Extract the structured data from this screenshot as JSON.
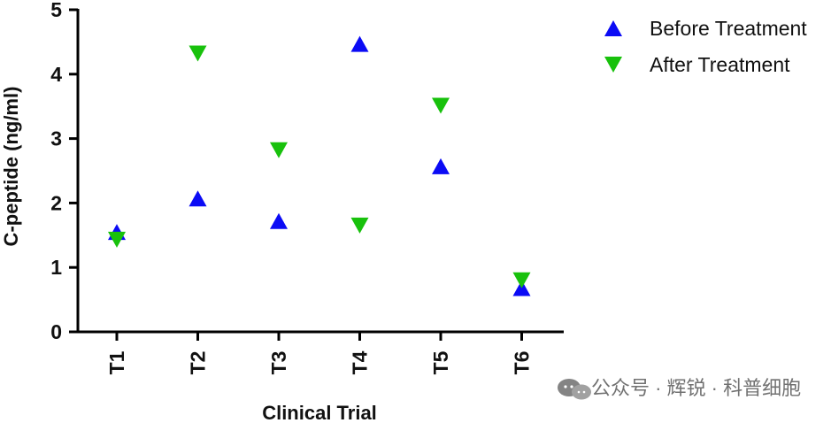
{
  "chart_data": {
    "type": "scatter",
    "title": "",
    "xlabel": "Clinical Trial",
    "ylabel": "C-peptide (ng/ml)",
    "categories": [
      "T1",
      "T2",
      "T3",
      "T4",
      "T5",
      "T6"
    ],
    "ylim": [
      0,
      5
    ],
    "yticks": [
      "0",
      "1",
      "2",
      "3",
      "4",
      "5"
    ],
    "grid": false,
    "legend_position": "top-right",
    "series": [
      {
        "name": "Before Treatment",
        "marker": "triangle-up",
        "color": "#0b0bf5",
        "values": [
          1.55,
          2.07,
          1.72,
          4.47,
          2.57,
          0.68
        ]
      },
      {
        "name": "After Treatment",
        "marker": "triangle-down",
        "color": "#18c10c",
        "values": [
          1.43,
          4.32,
          2.82,
          1.65,
          3.51,
          0.8
        ]
      }
    ]
  },
  "watermark": {
    "text": "公众号 · 辉锐 · 科普细胞"
  }
}
